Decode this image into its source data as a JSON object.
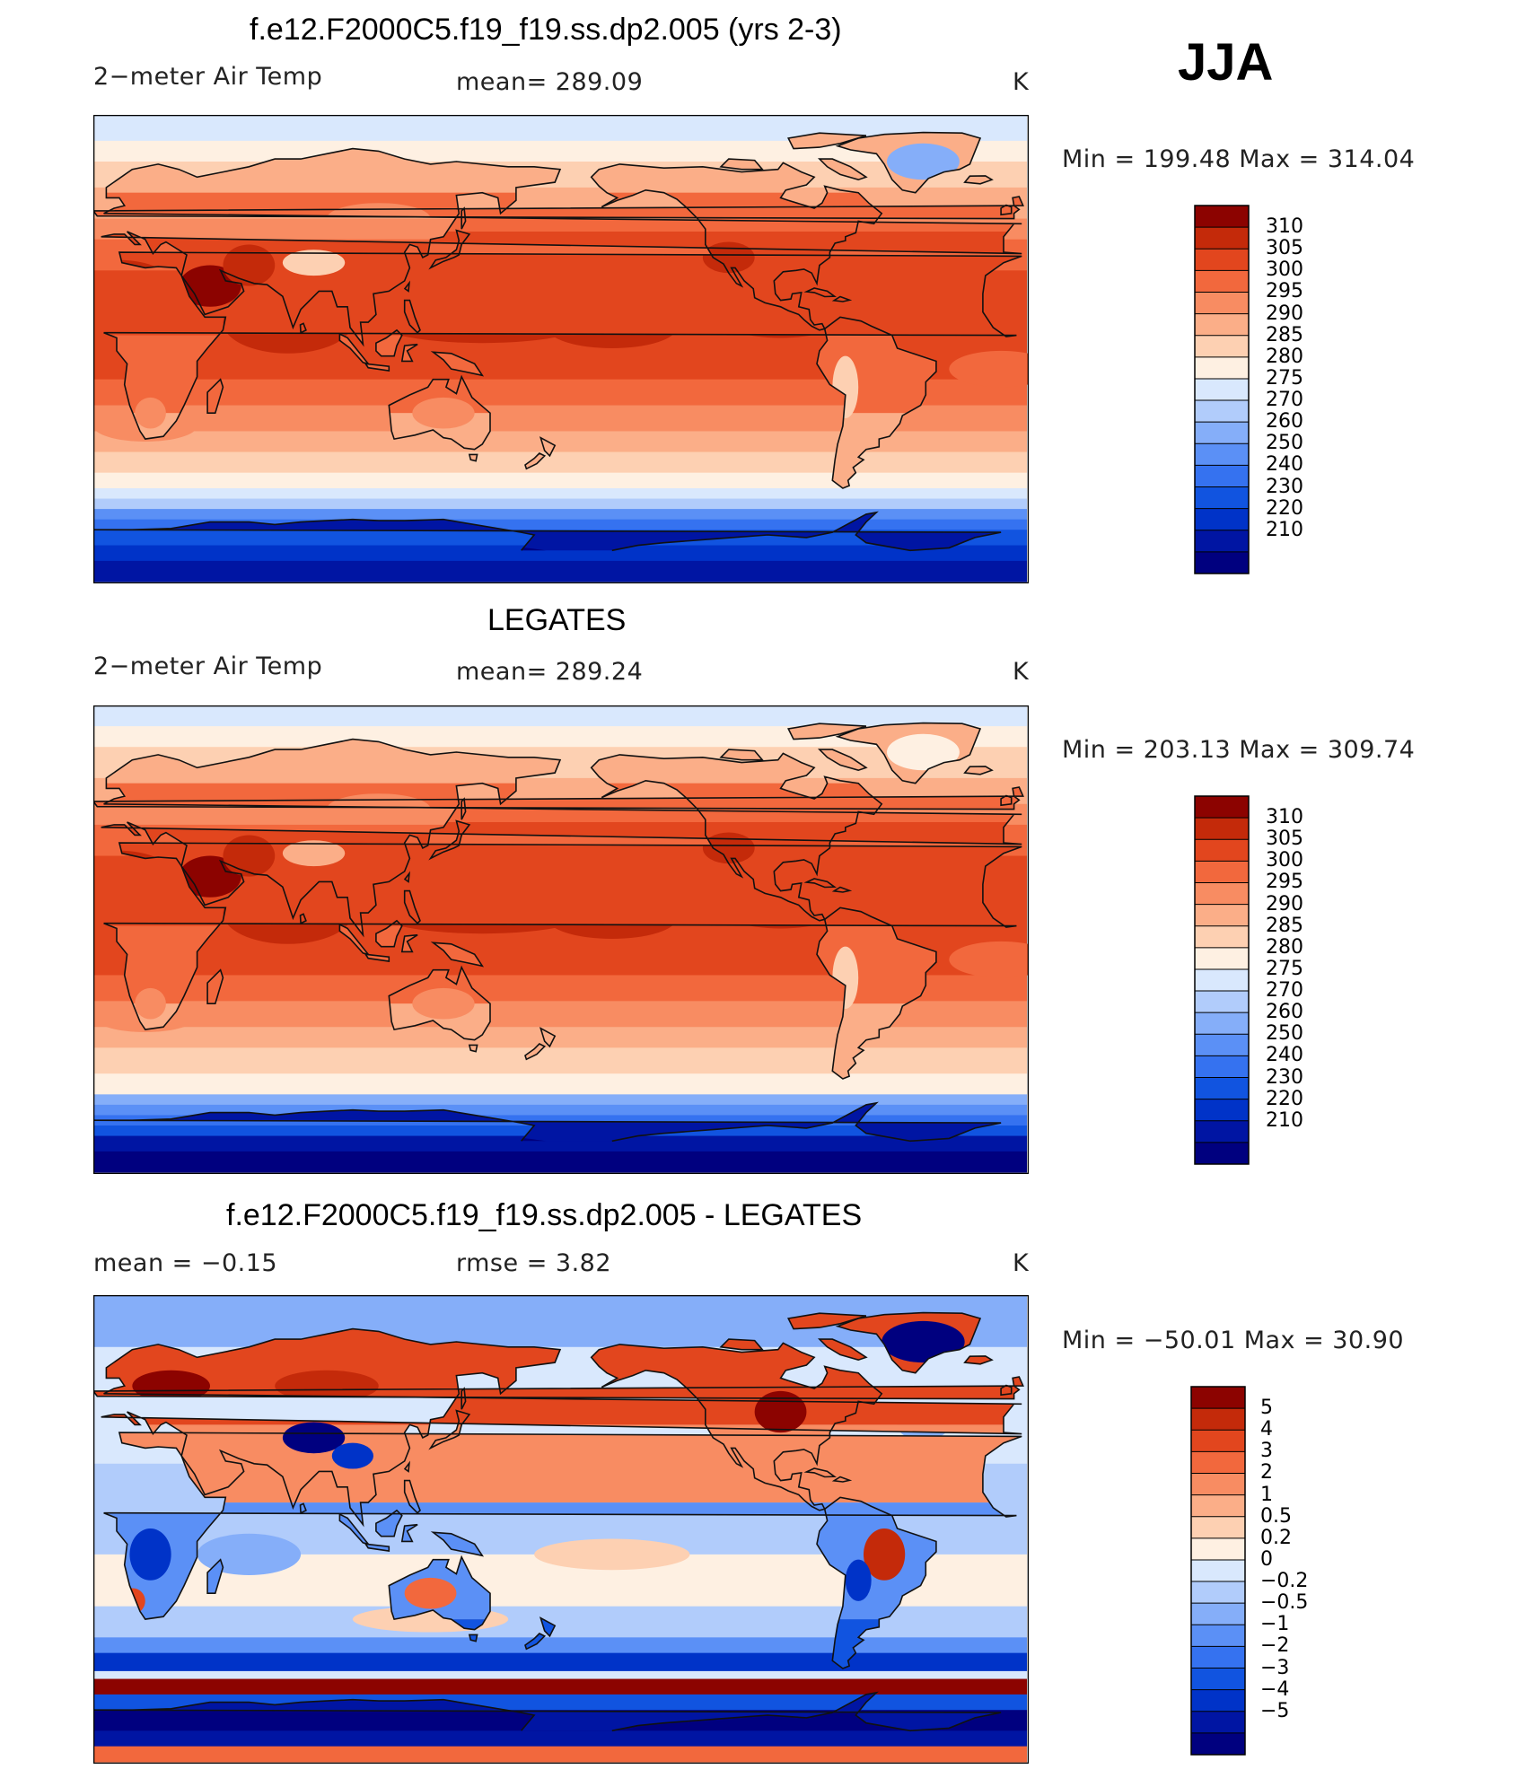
{
  "season": "JJA",
  "colors": {
    "abs_scale": [
      "#00007f",
      "#0015a3",
      "#0033c8",
      "#1154e0",
      "#3572f0",
      "#5b90f6",
      "#85aef9",
      "#b1ccfb",
      "#d9e8fd",
      "#fef0e2",
      "#fdd0b2",
      "#fbae88",
      "#f88c62",
      "#f2683d",
      "#e2461e",
      "#c42a0a",
      "#8c0300"
    ],
    "diff_scale": [
      "#00007f",
      "#0015a3",
      "#0033c8",
      "#1154e0",
      "#3572f0",
      "#5b90f6",
      "#85aef9",
      "#b1ccfb",
      "#d9e8fd",
      "#fef0e2",
      "#fdd0b2",
      "#fbae88",
      "#f88c62",
      "#f2683d",
      "#e2461e",
      "#c42a0a",
      "#8c0300"
    ]
  },
  "panels": [
    {
      "title": "f.e12.F2000C5.f19_f19.ss.dp2.005 (yrs 2-3)",
      "left": "2−meter Air Temp",
      "center": "mean=  289.09",
      "right": "K",
      "minmax": "Min  =  199.48  Max  =  314.04"
    },
    {
      "title": "LEGATES",
      "left": "2−meter Air Temp",
      "center": "mean=  289.24",
      "right": "K",
      "minmax": "Min  =  203.13  Max  =  309.74"
    },
    {
      "title": "f.e12.F2000C5.f19_f19.ss.dp2.005 - LEGATES",
      "left": "mean  =    −0.15",
      "center": "rmse  =     3.82",
      "right": "K",
      "minmax": "Min  =  −50.01  Max  =    30.90"
    }
  ],
  "chart_data": [
    {
      "type": "heatmap",
      "title": "f.e12.F2000C5.f19_f19.ss.dp2.005 (yrs 2-3)",
      "variable": "2−meter Air Temp",
      "units": "K",
      "mean": 289.09,
      "min": 199.48,
      "max": 314.04,
      "colorbar_labels": [
        "310",
        "305",
        "300",
        "295",
        "290",
        "285",
        "280",
        "275",
        "270",
        "260",
        "250",
        "240",
        "230",
        "220",
        "210"
      ],
      "levels": [
        210,
        220,
        230,
        240,
        250,
        260,
        270,
        275,
        280,
        285,
        290,
        295,
        300,
        305,
        310
      ]
    },
    {
      "type": "heatmap",
      "title": "LEGATES",
      "variable": "2−meter Air Temp",
      "units": "K",
      "mean": 289.24,
      "min": 203.13,
      "max": 309.74,
      "colorbar_labels": [
        "310",
        "305",
        "300",
        "295",
        "290",
        "285",
        "280",
        "275",
        "270",
        "260",
        "250",
        "240",
        "230",
        "220",
        "210"
      ],
      "levels": [
        210,
        220,
        230,
        240,
        250,
        260,
        270,
        275,
        280,
        285,
        290,
        295,
        300,
        305,
        310
      ]
    },
    {
      "type": "heatmap",
      "title": "f.e12.F2000C5.f19_f19.ss.dp2.005 - LEGATES",
      "units": "K",
      "mean": -0.15,
      "rmse": 3.82,
      "min": -50.01,
      "max": 30.9,
      "colorbar_labels": [
        "5",
        "4",
        "3",
        "2",
        "1",
        "0.5",
        "0.2",
        "0",
        "−0.2",
        "−0.5",
        "−1",
        "−2",
        "−3",
        "−4",
        "−5"
      ],
      "levels": [
        -5,
        -4,
        -3,
        -2,
        -1,
        -0.5,
        -0.2,
        0,
        0.2,
        0.5,
        1,
        2,
        3,
        4,
        5
      ]
    }
  ]
}
